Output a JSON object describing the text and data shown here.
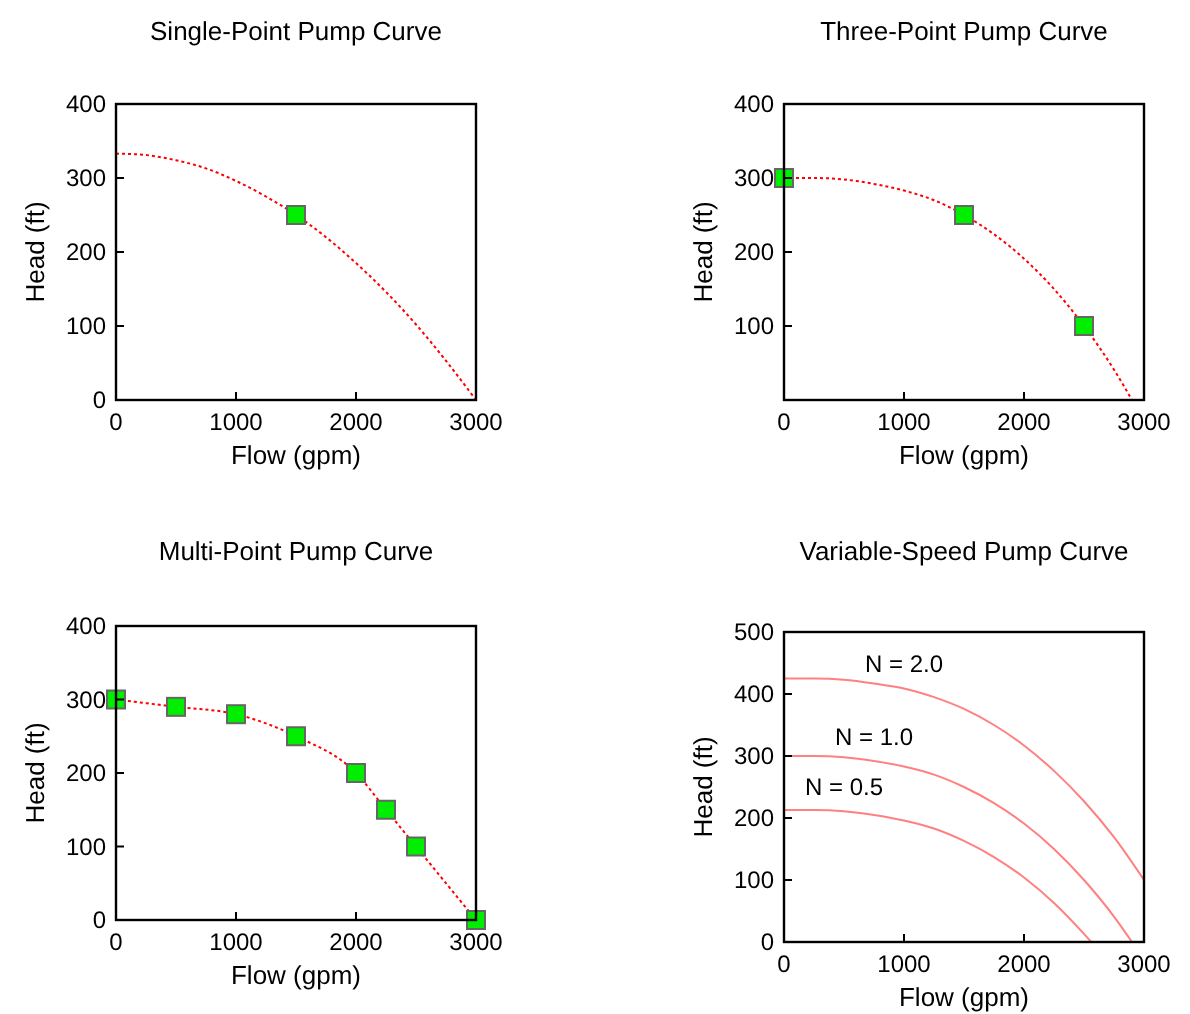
{
  "chart_data": [
    {
      "type": "line",
      "title": "Single-Point Pump Curve",
      "xlabel": "Flow (gpm)",
      "ylabel": "Head (ft)",
      "xlim": [
        0,
        3000
      ],
      "xticks": [
        0,
        1000,
        2000,
        3000
      ],
      "ylim": [
        0,
        400
      ],
      "yticks": [
        0,
        100,
        200,
        300,
        400
      ],
      "line_style": "dotted",
      "series": [
        {
          "color": "#ff0000",
          "x": [
            0,
            250,
            500,
            750,
            1000,
            1250,
            1500,
            1750,
            2000,
            2250,
            2500,
            2750,
            3000
          ],
          "values": [
            333,
            331,
            324,
            313,
            296,
            275,
            250,
            220,
            185,
            146,
            102,
            53,
            0
          ]
        },
        {
          "type": "scatter",
          "color": "#00ee00",
          "marker": "square",
          "x": [
            1500
          ],
          "values": [
            250
          ]
        }
      ]
    },
    {
      "type": "line",
      "title": "Three-Point Pump Curve",
      "xlabel": "Flow (gpm)",
      "ylabel": "Head (ft)",
      "xlim": [
        0,
        3000
      ],
      "xticks": [
        0,
        1000,
        2000,
        3000
      ],
      "ylim": [
        0,
        400
      ],
      "yticks": [
        100,
        200,
        300,
        400
      ],
      "line_style": "dotted",
      "series": [
        {
          "color": "#ff0000",
          "x": [
            0,
            250,
            500,
            750,
            1000,
            1250,
            1500,
            1750,
            2000,
            2250,
            2500,
            2750,
            2900
          ],
          "values": [
            300,
            300,
            298,
            292,
            283,
            270,
            250,
            224,
            191,
            150,
            100,
            41,
            0
          ]
        },
        {
          "type": "scatter",
          "color": "#00ee00",
          "marker": "square",
          "x": [
            0,
            1500,
            2500
          ],
          "values": [
            300,
            250,
            100
          ]
        }
      ]
    },
    {
      "type": "line",
      "title": "Multi-Point Pump Curve",
      "xlabel": "Flow (gpm)",
      "ylabel": "Head (ft)",
      "xlim": [
        0,
        3000
      ],
      "xticks": [
        0,
        1000,
        2000,
        3000
      ],
      "ylim": [
        0,
        400
      ],
      "yticks": [
        0,
        100,
        200,
        300,
        400
      ],
      "line_style": "dotted",
      "series": [
        {
          "color": "#ff0000",
          "x": [
            0,
            500,
            1000,
            1500,
            2000,
            2250,
            2500,
            3000
          ],
          "values": [
            300,
            290,
            280,
            250,
            200,
            150,
            100,
            0
          ]
        },
        {
          "type": "scatter",
          "color": "#00ee00",
          "marker": "square",
          "x": [
            0,
            500,
            1000,
            1500,
            2000,
            2250,
            2500,
            3000
          ],
          "values": [
            300,
            290,
            280,
            250,
            200,
            150,
            100,
            0
          ]
        }
      ]
    },
    {
      "type": "line",
      "title": "Variable-Speed Pump Curve",
      "xlabel": "Flow (gpm)",
      "ylabel": "Head (ft)",
      "xlim": [
        0,
        3000
      ],
      "xticks": [
        0,
        1000,
        2000,
        3000
      ],
      "ylim": [
        0,
        500
      ],
      "yticks": [
        0,
        100,
        200,
        300,
        400,
        500
      ],
      "line_style": "solid",
      "series": [
        {
          "name": "N = 2.0",
          "color": "#ff8080",
          "x": [
            0,
            250,
            500,
            750,
            1000,
            1250,
            1500,
            1750,
            2000,
            2250,
            2500,
            2750,
            3000
          ],
          "values": [
            425,
            425,
            423,
            417,
            409,
            395,
            376,
            350,
            317,
            276,
            227,
            169,
            100
          ]
        },
        {
          "name": "N = 1.0",
          "color": "#ff8080",
          "x": [
            0,
            250,
            500,
            750,
            1000,
            1250,
            1500,
            1750,
            2000,
            2250,
            2500,
            2750,
            2900
          ],
          "values": [
            300,
            300,
            298,
            292,
            283,
            270,
            250,
            224,
            191,
            150,
            100,
            41,
            0
          ]
        },
        {
          "name": "N = 0.5",
          "color": "#ff8080",
          "x": [
            0,
            250,
            500,
            750,
            1000,
            1250,
            1500,
            1750,
            2000,
            2250,
            2500,
            2560
          ],
          "values": [
            213,
            213,
            211,
            205,
            196,
            183,
            163,
            137,
            104,
            63,
            13,
            0
          ]
        }
      ]
    }
  ]
}
